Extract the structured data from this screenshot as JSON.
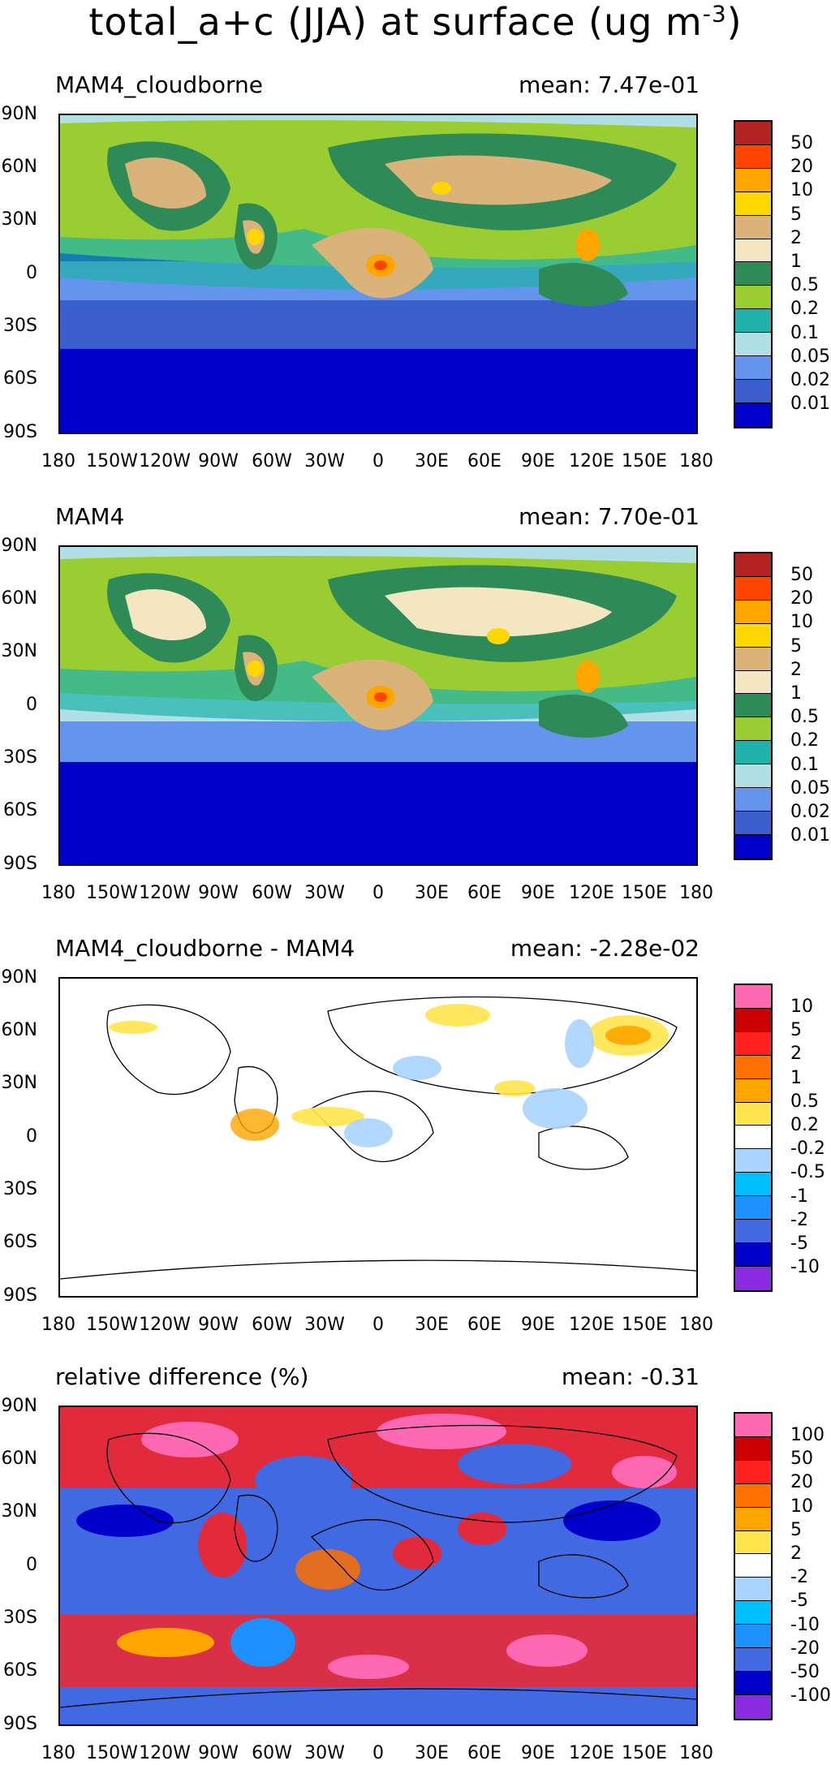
{
  "title": {
    "prefix": "total_a+c (JJA) at surface (ug m",
    "exp": "-3",
    "suffix": ")"
  },
  "axes": {
    "lat_labels": [
      "90N",
      "60N",
      "30N",
      "0",
      "30S",
      "60S",
      "90S"
    ],
    "lon_labels": [
      "180",
      "150W",
      "120W",
      "90W",
      "60W",
      "30W",
      "0",
      "30E",
      "60E",
      "90E",
      "120E",
      "150E",
      "180"
    ]
  },
  "panels": [
    {
      "name": "MAM4_cloudborne",
      "mean": "mean: 7.47e-01",
      "colorbar": {
        "labels": [
          "50",
          "20",
          "10",
          "5",
          "2",
          "1",
          "0.5",
          "0.2",
          "0.1",
          "0.05",
          "0.02",
          "0.01"
        ],
        "colors": [
          "#b22222",
          "#ff4500",
          "#ffa500",
          "#ffd700",
          "#d9b37a",
          "#f3e6c0",
          "#2e8b57",
          "#9acd32",
          "#20b2aa",
          "#b0e0e6",
          "#6495ed",
          "#3a5fcd",
          "#0000cd"
        ]
      }
    },
    {
      "name": "MAM4",
      "mean": "mean: 7.70e-01",
      "colorbar": {
        "labels": [
          "50",
          "20",
          "10",
          "5",
          "2",
          "1",
          "0.5",
          "0.2",
          "0.1",
          "0.05",
          "0.02",
          "0.01"
        ],
        "colors": [
          "#b22222",
          "#ff4500",
          "#ffa500",
          "#ffd700",
          "#d9b37a",
          "#f3e6c0",
          "#2e8b57",
          "#9acd32",
          "#20b2aa",
          "#b0e0e6",
          "#6495ed",
          "#3a5fcd",
          "#0000cd"
        ]
      }
    },
    {
      "name": "MAM4_cloudborne - MAM4",
      "mean": "mean: -2.28e-02",
      "colorbar": {
        "labels": [
          "10",
          "5",
          "2",
          "1",
          "0.5",
          "0.2",
          "-0.2",
          "-0.5",
          "-1",
          "-2",
          "-5",
          "-10"
        ],
        "colors": [
          "#ff69b4",
          "#cc0000",
          "#ff2020",
          "#ff7000",
          "#ffa500",
          "#ffe44d",
          "#ffffff",
          "#aad4ff",
          "#00bfff",
          "#1e90ff",
          "#4169e1",
          "#0000cd",
          "#8a2be2"
        ]
      }
    },
    {
      "name": "relative difference (%)",
      "mean": "mean: -0.31",
      "colorbar": {
        "labels": [
          "100",
          "50",
          "20",
          "10",
          "5",
          "2",
          "-2",
          "-5",
          "-10",
          "-20",
          "-50",
          "-100"
        ],
        "colors": [
          "#ff69b4",
          "#cc0000",
          "#ff2020",
          "#ff7000",
          "#ffa500",
          "#ffe44d",
          "#ffffff",
          "#aad4ff",
          "#00bfff",
          "#1e90ff",
          "#4169e1",
          "#0000cd",
          "#8a2be2"
        ]
      }
    }
  ]
}
